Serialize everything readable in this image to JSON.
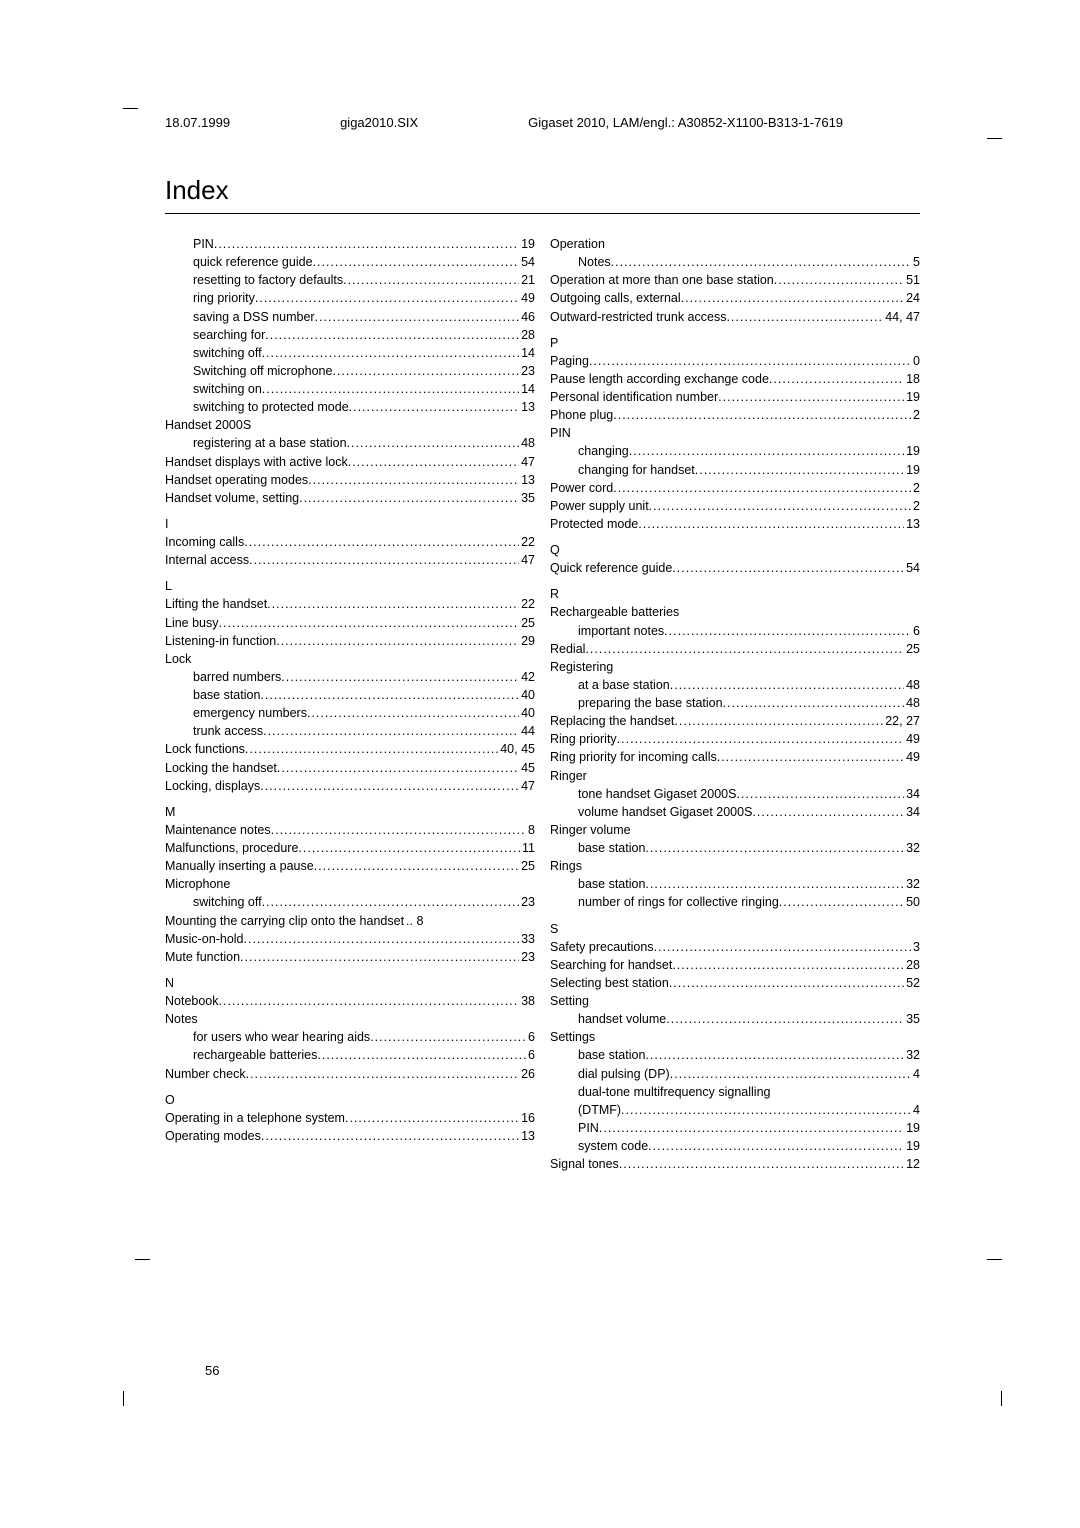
{
  "header": {
    "date": "18.07.1999",
    "file": "giga2010.SIX",
    "doc_id": "Gigaset 2010, LAM/engl.: A30852-X1100-B313-1-7619"
  },
  "title": "Index",
  "page_number": "56",
  "left_col": [
    {
      "label": "PIN",
      "page": "19",
      "indent": 1
    },
    {
      "label": "quick reference guide",
      "page": "54",
      "indent": 1
    },
    {
      "label": "resetting to factory defaults",
      "page": "21",
      "indent": 1
    },
    {
      "label": "ring priority",
      "page": "49",
      "indent": 1
    },
    {
      "label": "saving a DSS number",
      "page": "46",
      "indent": 1
    },
    {
      "label": "searching for",
      "page": "28",
      "indent": 1
    },
    {
      "label": "switching off",
      "page": "14",
      "indent": 1
    },
    {
      "label": "Switching off microphone",
      "page": "23",
      "indent": 1
    },
    {
      "label": "switching on",
      "page": "14",
      "indent": 1
    },
    {
      "label": "switching to protected mode",
      "page": "13",
      "indent": 1
    },
    {
      "label": "Handset 2000S",
      "page": "",
      "indent": 0,
      "nodots": true
    },
    {
      "label": "registering at a base station",
      "page": "48",
      "indent": 1
    },
    {
      "label": "Handset displays with active lock",
      "page": "47",
      "indent": 0
    },
    {
      "label": "Handset operating modes",
      "page": "13",
      "indent": 0
    },
    {
      "label": "Handset volume, setting",
      "page": "35",
      "indent": 0
    },
    {
      "label": "I",
      "page": "",
      "indent": 0,
      "section": true
    },
    {
      "label": "Incoming calls",
      "page": "22",
      "indent": 0
    },
    {
      "label": "Internal access",
      "page": "47",
      "indent": 0
    },
    {
      "label": "L",
      "page": "",
      "indent": 0,
      "section": true
    },
    {
      "label": "Lifting the handset",
      "page": "22",
      "indent": 0
    },
    {
      "label": "Line busy",
      "page": "25",
      "indent": 0
    },
    {
      "label": "Listening-in function",
      "page": "29",
      "indent": 0
    },
    {
      "label": "Lock",
      "page": "",
      "indent": 0,
      "nodots": true
    },
    {
      "label": "barred numbers",
      "page": "42",
      "indent": 1
    },
    {
      "label": "base station",
      "page": "40",
      "indent": 1
    },
    {
      "label": "emergency numbers",
      "page": "40",
      "indent": 1
    },
    {
      "label": "trunk access",
      "page": "44",
      "indent": 1
    },
    {
      "label": "Lock functions",
      "page": "40, 45",
      "indent": 0
    },
    {
      "label": "Locking the handset",
      "page": "45",
      "indent": 0
    },
    {
      "label": "Locking, displays",
      "page": "47",
      "indent": 0
    },
    {
      "label": "M",
      "page": "",
      "indent": 0,
      "section": true
    },
    {
      "label": "Maintenance notes",
      "page": "8",
      "indent": 0
    },
    {
      "label": "Malfunctions, procedure",
      "page": "11",
      "indent": 0
    },
    {
      "label": "Manually inserting a pause",
      "page": "25",
      "indent": 0
    },
    {
      "label": "Microphone",
      "page": "",
      "indent": 0,
      "nodots": true
    },
    {
      "label": "switching off",
      "page": "23",
      "indent": 1
    },
    {
      "label": "Mounting the carrying clip onto the handset",
      "page": ".. 8",
      "indent": 0,
      "rawpage": true
    },
    {
      "label": "Music-on-hold",
      "page": "33",
      "indent": 0
    },
    {
      "label": "Mute function",
      "page": "23",
      "indent": 0
    },
    {
      "label": "N",
      "page": "",
      "indent": 0,
      "section": true
    },
    {
      "label": "Notebook",
      "page": "38",
      "indent": 0
    },
    {
      "label": "Notes",
      "page": "",
      "indent": 0,
      "nodots": true
    },
    {
      "label": "for users who wear hearing aids",
      "page": "6",
      "indent": 1
    },
    {
      "label": "rechargeable batteries",
      "page": "6",
      "indent": 1
    },
    {
      "label": "Number check",
      "page": "26",
      "indent": 0
    },
    {
      "label": "O",
      "page": "",
      "indent": 0,
      "section": true
    },
    {
      "label": "Operating in a telephone system",
      "page": "16",
      "indent": 0
    },
    {
      "label": "Operating modes",
      "page": "13",
      "indent": 0
    }
  ],
  "right_col": [
    {
      "label": "Operation",
      "page": "",
      "indent": 0,
      "nodots": true
    },
    {
      "label": "Notes",
      "page": "5",
      "indent": 1
    },
    {
      "label": "Operation at more than one base station",
      "page": "51",
      "indent": 0
    },
    {
      "label": "Outgoing calls, external",
      "page": "24",
      "indent": 0
    },
    {
      "label": "Outward-restricted trunk access",
      "page": "44, 47",
      "indent": 0
    },
    {
      "label": "P",
      "page": "",
      "indent": 0,
      "section": true
    },
    {
      "label": "Paging",
      "page": "0",
      "indent": 0
    },
    {
      "label": "Pause length according exchange code",
      "page": "18",
      "indent": 0
    },
    {
      "label": "Personal identification number",
      "page": "19",
      "indent": 0
    },
    {
      "label": "Phone plug",
      "page": "2",
      "indent": 0
    },
    {
      "label": "PIN",
      "page": "",
      "indent": 0,
      "nodots": true
    },
    {
      "label": "changing",
      "page": "19",
      "indent": 1
    },
    {
      "label": "changing for handset",
      "page": "19",
      "indent": 1
    },
    {
      "label": "Power cord",
      "page": "2",
      "indent": 0
    },
    {
      "label": "Power supply unit",
      "page": "2",
      "indent": 0
    },
    {
      "label": "Protected mode",
      "page": "13",
      "indent": 0
    },
    {
      "label": "Q",
      "page": "",
      "indent": 0,
      "section": true
    },
    {
      "label": "Quick reference guide",
      "page": "54",
      "indent": 0
    },
    {
      "label": "R",
      "page": "",
      "indent": 0,
      "section": true
    },
    {
      "label": "Rechargeable batteries",
      "page": "",
      "indent": 0,
      "nodots": true
    },
    {
      "label": "important notes",
      "page": "6",
      "indent": 1
    },
    {
      "label": "Redial",
      "page": "25",
      "indent": 0
    },
    {
      "label": "Registering",
      "page": "",
      "indent": 0,
      "nodots": true
    },
    {
      "label": "at a base station",
      "page": "48",
      "indent": 1
    },
    {
      "label": "preparing the base station",
      "page": "48",
      "indent": 1
    },
    {
      "label": "Replacing the handset",
      "page": "22, 27",
      "indent": 0
    },
    {
      "label": "Ring priority",
      "page": "49",
      "indent": 0
    },
    {
      "label": "Ring priority for incoming calls",
      "page": "49",
      "indent": 0
    },
    {
      "label": "Ringer",
      "page": "",
      "indent": 0,
      "nodots": true
    },
    {
      "label": "tone handset Gigaset 2000S",
      "page": "34",
      "indent": 1
    },
    {
      "label": "volume handset Gigaset 2000S",
      "page": "34",
      "indent": 1
    },
    {
      "label": "Ringer volume",
      "page": "",
      "indent": 0,
      "nodots": true
    },
    {
      "label": "base station",
      "page": "32",
      "indent": 1
    },
    {
      "label": "Rings",
      "page": "",
      "indent": 0,
      "nodots": true
    },
    {
      "label": "base station",
      "page": "32",
      "indent": 1
    },
    {
      "label": "number of rings for collective ringing",
      "page": "50",
      "indent": 1
    },
    {
      "label": "S",
      "page": "",
      "indent": 0,
      "section": true
    },
    {
      "label": "Safety precautions",
      "page": "3",
      "indent": 0
    },
    {
      "label": "Searching for handset",
      "page": "28",
      "indent": 0
    },
    {
      "label": "Selecting best station",
      "page": "52",
      "indent": 0
    },
    {
      "label": "Setting",
      "page": "",
      "indent": 0,
      "nodots": true
    },
    {
      "label": "handset volume",
      "page": "35",
      "indent": 1
    },
    {
      "label": "Settings",
      "page": "",
      "indent": 0,
      "nodots": true
    },
    {
      "label": "base station",
      "page": "32",
      "indent": 1
    },
    {
      "label": "dial pulsing (DP)",
      "page": "4",
      "indent": 1
    },
    {
      "label": "dual-tone multifrequency signalling",
      "page": "",
      "indent": 1,
      "nodots": true
    },
    {
      "label": "(DTMF)",
      "page": "4",
      "indent": 1
    },
    {
      "label": "PIN",
      "page": "19",
      "indent": 1
    },
    {
      "label": "system code",
      "page": "19",
      "indent": 1
    },
    {
      "label": "Signal tones",
      "page": "12",
      "indent": 0
    }
  ]
}
